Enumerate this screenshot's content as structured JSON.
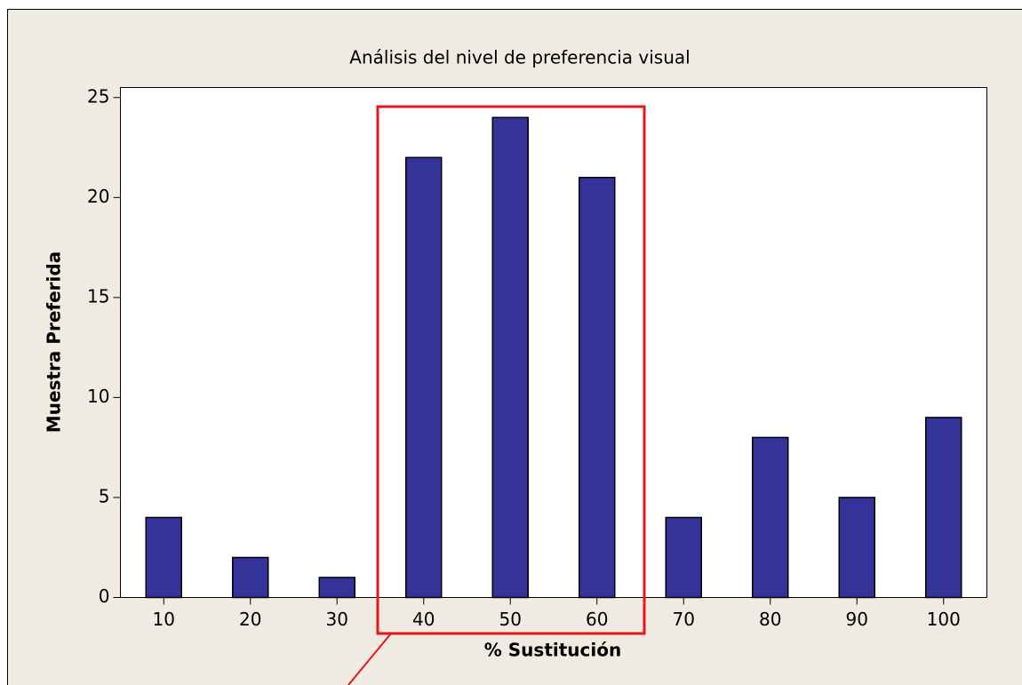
{
  "chart_data": {
    "type": "bar",
    "title": "Análisis del nivel de preferencia visual",
    "x_label": "% Sustitución",
    "y_label": "Muestra Preferida",
    "categories": [
      10,
      20,
      30,
      40,
      50,
      60,
      70,
      80,
      90,
      100
    ],
    "values": [
      4,
      2,
      1,
      22,
      24,
      21,
      4,
      8,
      5,
      9
    ],
    "color": "#333399",
    "ylim": [
      0,
      25.5
    ],
    "yticks": [
      0,
      5,
      10,
      15,
      20,
      25
    ],
    "grid": false
  }
}
